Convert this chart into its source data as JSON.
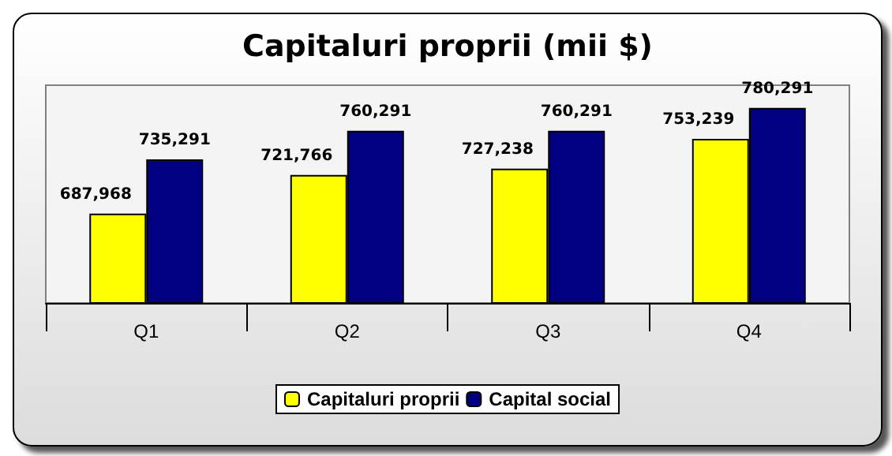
{
  "chart_data": {
    "type": "bar",
    "title": "Capitaluri proprii (mii $)",
    "categories": [
      "Q1",
      "Q2",
      "Q3",
      "Q4"
    ],
    "series": [
      {
        "name": "Capitaluri proprii",
        "color": "#ffff00",
        "values": [
          687968,
          721766,
          727238,
          753239
        ],
        "value_labels": [
          "687,968",
          "721,766",
          "727,238",
          "753,239"
        ]
      },
      {
        "name": "Capital social",
        "color": "#000080",
        "values": [
          735291,
          760291,
          760291,
          780291
        ],
        "value_labels": [
          "735,291",
          "760,291",
          "760,291",
          "780,291"
        ]
      }
    ],
    "ylim": [
      610000,
      800000
    ],
    "tick_labels": "x",
    "legend": "bottom"
  }
}
